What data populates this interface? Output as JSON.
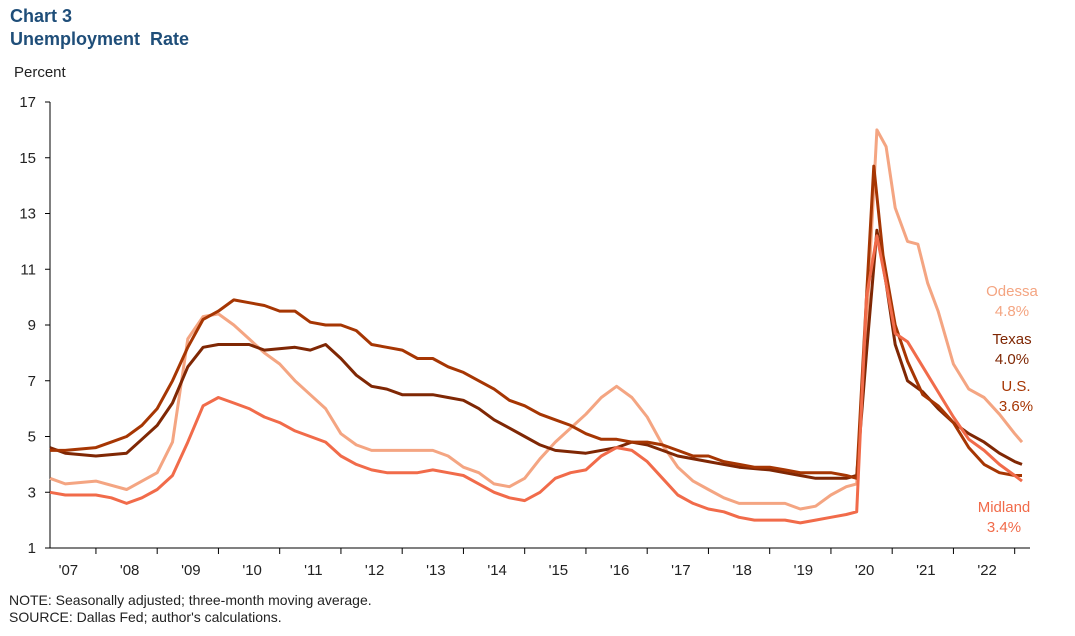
{
  "header": {
    "chart_number": "Chart 3",
    "title": "Unemployment  Rate"
  },
  "footer": {
    "note": "NOTE: Seasonally adjusted; three-month moving average.",
    "source": "SOURCE: Dallas Fed; author's calculations."
  },
  "chart_data": {
    "type": "line",
    "title": "Unemployment Rate",
    "ylabel": "Percent",
    "xlabel": "",
    "ylim": [
      1,
      17
    ],
    "yticks": [
      1,
      3,
      5,
      7,
      9,
      11,
      13,
      15,
      17
    ],
    "xlim": [
      2006.75,
      2022.75
    ],
    "xtick_labels": [
      {
        "label": "'07",
        "x": 2007
      },
      {
        "label": "'08",
        "x": 2008
      },
      {
        "label": "'09",
        "x": 2009
      },
      {
        "label": "'10",
        "x": 2010
      },
      {
        "label": "'11",
        "x": 2011
      },
      {
        "label": "'12",
        "x": 2012
      },
      {
        "label": "'13",
        "x": 2013
      },
      {
        "label": "'14",
        "x": 2014
      },
      {
        "label": "'15",
        "x": 2015
      },
      {
        "label": "'16",
        "x": 2016
      },
      {
        "label": "'17",
        "x": 2017
      },
      {
        "label": "'18",
        "x": 2018
      },
      {
        "label": "'19",
        "x": 2019
      },
      {
        "label": "'20",
        "x": 2020
      },
      {
        "label": "'21",
        "x": 2021
      },
      {
        "label": "'22",
        "x": 2022
      }
    ],
    "grid": false,
    "series": [
      {
        "name": "Odessa",
        "end_label": "4.8%",
        "color": "#f4a582",
        "points": [
          [
            2006.75,
            3.5
          ],
          [
            2007,
            3.3
          ],
          [
            2007.5,
            3.4
          ],
          [
            2008,
            3.1
          ],
          [
            2008.5,
            3.7
          ],
          [
            2008.75,
            4.8
          ],
          [
            2009,
            8.5
          ],
          [
            2009.25,
            9.3
          ],
          [
            2009.5,
            9.4
          ],
          [
            2009.75,
            9.0
          ],
          [
            2010,
            8.5
          ],
          [
            2010.25,
            8.0
          ],
          [
            2010.5,
            7.6
          ],
          [
            2010.75,
            7.0
          ],
          [
            2011,
            6.5
          ],
          [
            2011.25,
            6.0
          ],
          [
            2011.5,
            5.1
          ],
          [
            2011.75,
            4.7
          ],
          [
            2012,
            4.5
          ],
          [
            2012.5,
            4.5
          ],
          [
            2013,
            4.5
          ],
          [
            2013.25,
            4.3
          ],
          [
            2013.5,
            3.9
          ],
          [
            2013.75,
            3.7
          ],
          [
            2014,
            3.3
          ],
          [
            2014.25,
            3.2
          ],
          [
            2014.5,
            3.5
          ],
          [
            2014.75,
            4.2
          ],
          [
            2015,
            4.8
          ],
          [
            2015.25,
            5.3
          ],
          [
            2015.5,
            5.8
          ],
          [
            2015.75,
            6.4
          ],
          [
            2016,
            6.8
          ],
          [
            2016.25,
            6.4
          ],
          [
            2016.5,
            5.7
          ],
          [
            2016.75,
            4.7
          ],
          [
            2017,
            3.9
          ],
          [
            2017.25,
            3.4
          ],
          [
            2017.5,
            3.1
          ],
          [
            2017.75,
            2.8
          ],
          [
            2018,
            2.6
          ],
          [
            2018.5,
            2.6
          ],
          [
            2018.75,
            2.6
          ],
          [
            2019,
            2.4
          ],
          [
            2019.25,
            2.5
          ],
          [
            2019.5,
            2.9
          ],
          [
            2019.75,
            3.2
          ],
          [
            2019.92,
            3.3
          ],
          [
            2020.08,
            9.0
          ],
          [
            2020.25,
            16.0
          ],
          [
            2020.4,
            15.4
          ],
          [
            2020.55,
            13.2
          ],
          [
            2020.75,
            12.0
          ],
          [
            2020.92,
            11.9
          ],
          [
            2021.08,
            10.5
          ],
          [
            2021.25,
            9.5
          ],
          [
            2021.5,
            7.6
          ],
          [
            2021.75,
            6.7
          ],
          [
            2022,
            6.4
          ],
          [
            2022.25,
            5.8
          ],
          [
            2022.5,
            5.1
          ],
          [
            2022.62,
            4.8
          ]
        ]
      },
      {
        "name": "Texas",
        "end_label": "4.0%",
        "color": "#7f2704",
        "points": [
          [
            2006.75,
            4.6
          ],
          [
            2007,
            4.4
          ],
          [
            2007.5,
            4.3
          ],
          [
            2008,
            4.4
          ],
          [
            2008.25,
            4.9
          ],
          [
            2008.5,
            5.4
          ],
          [
            2008.75,
            6.2
          ],
          [
            2009,
            7.5
          ],
          [
            2009.25,
            8.2
          ],
          [
            2009.5,
            8.3
          ],
          [
            2010,
            8.3
          ],
          [
            2010.25,
            8.1
          ],
          [
            2010.75,
            8.2
          ],
          [
            2011,
            8.1
          ],
          [
            2011.25,
            8.3
          ],
          [
            2011.5,
            7.8
          ],
          [
            2011.75,
            7.2
          ],
          [
            2012,
            6.8
          ],
          [
            2012.25,
            6.7
          ],
          [
            2012.5,
            6.5
          ],
          [
            2013,
            6.5
          ],
          [
            2013.25,
            6.4
          ],
          [
            2013.5,
            6.3
          ],
          [
            2013.75,
            6.0
          ],
          [
            2014,
            5.6
          ],
          [
            2014.25,
            5.3
          ],
          [
            2014.5,
            5.0
          ],
          [
            2014.75,
            4.7
          ],
          [
            2015,
            4.5
          ],
          [
            2015.5,
            4.4
          ],
          [
            2016,
            4.6
          ],
          [
            2016.25,
            4.8
          ],
          [
            2016.5,
            4.7
          ],
          [
            2016.75,
            4.5
          ],
          [
            2017,
            4.3
          ],
          [
            2017.5,
            4.1
          ],
          [
            2018,
            3.9
          ],
          [
            2018.5,
            3.8
          ],
          [
            2019,
            3.6
          ],
          [
            2019.25,
            3.5
          ],
          [
            2019.5,
            3.5
          ],
          [
            2019.75,
            3.5
          ],
          [
            2019.92,
            3.6
          ],
          [
            2020.08,
            8.0
          ],
          [
            2020.25,
            12.4
          ],
          [
            2020.4,
            10.5
          ],
          [
            2020.55,
            8.3
          ],
          [
            2020.75,
            7.0
          ],
          [
            2021,
            6.6
          ],
          [
            2021.25,
            6.0
          ],
          [
            2021.5,
            5.5
          ],
          [
            2021.75,
            5.1
          ],
          [
            2022,
            4.8
          ],
          [
            2022.25,
            4.4
          ],
          [
            2022.5,
            4.1
          ],
          [
            2022.62,
            4.0
          ]
        ]
      },
      {
        "name": "U.S.",
        "end_label": "3.6%",
        "color": "#a63603",
        "points": [
          [
            2006.75,
            4.5
          ],
          [
            2007,
            4.5
          ],
          [
            2007.5,
            4.6
          ],
          [
            2007.75,
            4.8
          ],
          [
            2008,
            5.0
          ],
          [
            2008.25,
            5.4
          ],
          [
            2008.5,
            6.0
          ],
          [
            2008.75,
            7.0
          ],
          [
            2009,
            8.2
          ],
          [
            2009.25,
            9.2
          ],
          [
            2009.5,
            9.5
          ],
          [
            2009.75,
            9.9
          ],
          [
            2010,
            9.8
          ],
          [
            2010.25,
            9.7
          ],
          [
            2010.5,
            9.5
          ],
          [
            2010.75,
            9.5
          ],
          [
            2011,
            9.1
          ],
          [
            2011.25,
            9.0
          ],
          [
            2011.5,
            9.0
          ],
          [
            2011.75,
            8.8
          ],
          [
            2012,
            8.3
          ],
          [
            2012.25,
            8.2
          ],
          [
            2012.5,
            8.1
          ],
          [
            2012.75,
            7.8
          ],
          [
            2013,
            7.8
          ],
          [
            2013.25,
            7.5
          ],
          [
            2013.5,
            7.3
          ],
          [
            2013.75,
            7.0
          ],
          [
            2014,
            6.7
          ],
          [
            2014.25,
            6.3
          ],
          [
            2014.5,
            6.1
          ],
          [
            2014.75,
            5.8
          ],
          [
            2015,
            5.6
          ],
          [
            2015.25,
            5.4
          ],
          [
            2015.5,
            5.1
          ],
          [
            2015.75,
            4.9
          ],
          [
            2016,
            4.9
          ],
          [
            2016.25,
            4.8
          ],
          [
            2016.5,
            4.8
          ],
          [
            2016.75,
            4.7
          ],
          [
            2017,
            4.5
          ],
          [
            2017.25,
            4.3
          ],
          [
            2017.5,
            4.3
          ],
          [
            2017.75,
            4.1
          ],
          [
            2018,
            4.0
          ],
          [
            2018.25,
            3.9
          ],
          [
            2018.5,
            3.9
          ],
          [
            2018.75,
            3.8
          ],
          [
            2019,
            3.7
          ],
          [
            2019.25,
            3.7
          ],
          [
            2019.5,
            3.7
          ],
          [
            2019.75,
            3.6
          ],
          [
            2019.92,
            3.5
          ],
          [
            2020.08,
            10.0
          ],
          [
            2020.2,
            14.7
          ],
          [
            2020.35,
            11.5
          ],
          [
            2020.55,
            9.0
          ],
          [
            2020.75,
            7.7
          ],
          [
            2021,
            6.5
          ],
          [
            2021.25,
            6.1
          ],
          [
            2021.5,
            5.5
          ],
          [
            2021.75,
            4.6
          ],
          [
            2022,
            4.0
          ],
          [
            2022.25,
            3.7
          ],
          [
            2022.5,
            3.6
          ],
          [
            2022.62,
            3.6
          ]
        ]
      },
      {
        "name": "Midland",
        "end_label": "3.4%",
        "color": "#f16b4a",
        "points": [
          [
            2006.75,
            3.0
          ],
          [
            2007,
            2.9
          ],
          [
            2007.5,
            2.9
          ],
          [
            2007.75,
            2.8
          ],
          [
            2008,
            2.6
          ],
          [
            2008.25,
            2.8
          ],
          [
            2008.5,
            3.1
          ],
          [
            2008.75,
            3.6
          ],
          [
            2009,
            4.8
          ],
          [
            2009.25,
            6.1
          ],
          [
            2009.5,
            6.4
          ],
          [
            2009.75,
            6.2
          ],
          [
            2010,
            6.0
          ],
          [
            2010.25,
            5.7
          ],
          [
            2010.5,
            5.5
          ],
          [
            2010.75,
            5.2
          ],
          [
            2011,
            5.0
          ],
          [
            2011.25,
            4.8
          ],
          [
            2011.5,
            4.3
          ],
          [
            2011.75,
            4.0
          ],
          [
            2012,
            3.8
          ],
          [
            2012.25,
            3.7
          ],
          [
            2012.5,
            3.7
          ],
          [
            2012.75,
            3.7
          ],
          [
            2013,
            3.8
          ],
          [
            2013.25,
            3.7
          ],
          [
            2013.5,
            3.6
          ],
          [
            2013.75,
            3.3
          ],
          [
            2014,
            3.0
          ],
          [
            2014.25,
            2.8
          ],
          [
            2014.5,
            2.7
          ],
          [
            2014.75,
            3.0
          ],
          [
            2015,
            3.5
          ],
          [
            2015.25,
            3.7
          ],
          [
            2015.5,
            3.8
          ],
          [
            2015.75,
            4.3
          ],
          [
            2016,
            4.6
          ],
          [
            2016.25,
            4.5
          ],
          [
            2016.5,
            4.1
          ],
          [
            2016.75,
            3.5
          ],
          [
            2017,
            2.9
          ],
          [
            2017.25,
            2.6
          ],
          [
            2017.5,
            2.4
          ],
          [
            2017.75,
            2.3
          ],
          [
            2018,
            2.1
          ],
          [
            2018.25,
            2.0
          ],
          [
            2018.5,
            2.0
          ],
          [
            2018.75,
            2.0
          ],
          [
            2019,
            1.9
          ],
          [
            2019.25,
            2.0
          ],
          [
            2019.5,
            2.1
          ],
          [
            2019.75,
            2.2
          ],
          [
            2019.92,
            2.3
          ],
          [
            2020.08,
            10.0
          ],
          [
            2020.25,
            12.2
          ],
          [
            2020.4,
            10.5
          ],
          [
            2020.55,
            8.7
          ],
          [
            2020.75,
            8.4
          ],
          [
            2021,
            7.5
          ],
          [
            2021.25,
            6.6
          ],
          [
            2021.5,
            5.7
          ],
          [
            2021.75,
            4.9
          ],
          [
            2022,
            4.5
          ],
          [
            2022.25,
            4.0
          ],
          [
            2022.5,
            3.6
          ],
          [
            2022.62,
            3.4
          ]
        ]
      }
    ]
  }
}
